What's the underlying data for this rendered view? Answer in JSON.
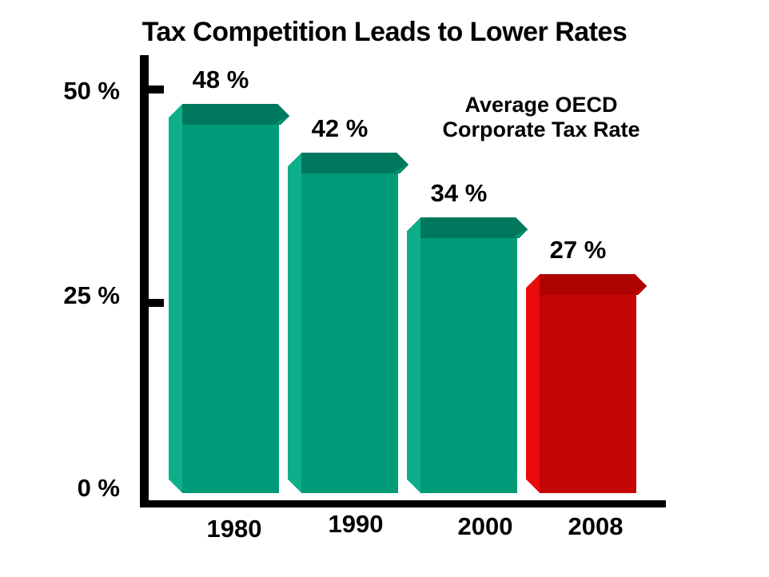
{
  "slide": {
    "title": "Tax Competition Leads to Lower Rates"
  },
  "chart_data": {
    "type": "bar",
    "title": "Tax Competition Leads to Lower Rates",
    "annotation_lines": [
      "Average OECD",
      "Corporate Tax Rate"
    ],
    "categories": [
      "1980",
      "1990",
      "2000",
      "2008"
    ],
    "series": [
      {
        "name": "Average OECD Corporate Tax Rate",
        "values": [
          48,
          42,
          34,
          27
        ]
      }
    ],
    "values": [
      48,
      42,
      34,
      27
    ],
    "value_labels": [
      "48 %",
      "42 %",
      "34 %",
      "27 %"
    ],
    "y_tick_labels": [
      "50 %",
      "25 %",
      "0 %"
    ],
    "y_tick_values": [
      50,
      25,
      0
    ],
    "ylim": [
      0,
      50
    ],
    "unit": "%",
    "grid": false,
    "bar_style": "3d-bevel",
    "legend_position": "top-right",
    "bar_color_keys": [
      "teal",
      "teal",
      "teal",
      "red"
    ],
    "colors": {
      "teal_face": "#009B78",
      "teal_light": "#0FAE8B",
      "teal_dark": "#00785E",
      "red_face": "#C50404",
      "red_light": "#E80C0C",
      "red_dark": "#AF0202",
      "axis": "#000000",
      "text": "#000000",
      "background": "#FFFFFF"
    }
  }
}
